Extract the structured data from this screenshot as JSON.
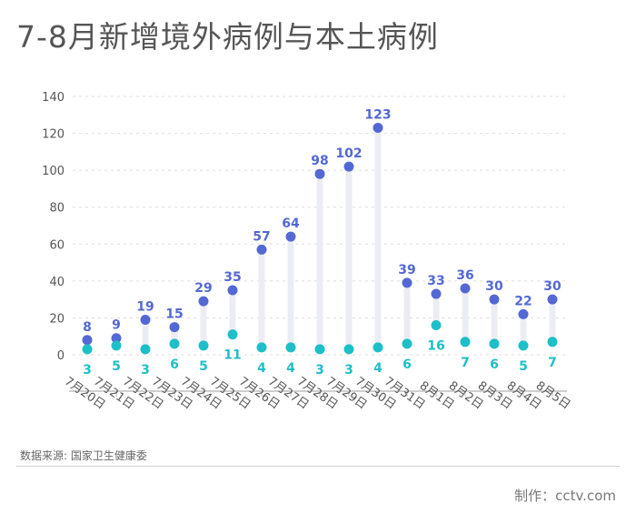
{
  "title": "7-8月新增境外病例与本土病例",
  "source": "数据来源: 国家卫生健康委",
  "credit": "制作：cctv.com",
  "colors": {
    "imported": "#5468d4",
    "local": "#1dbfc8",
    "stem": "#ecedf4",
    "axis": "#bfbfbf",
    "grid": "#dddddd",
    "text": "#555555"
  },
  "chart_data": {
    "type": "scatter",
    "categories": [
      "7月20日",
      "7月21日",
      "7月22日",
      "7月23日",
      "7月24日",
      "7月25日",
      "7月26日",
      "7月27日",
      "7月28日",
      "7月29日",
      "7月30日",
      "7月31日",
      "8月1日",
      "8月2日",
      "8月3日",
      "8月4日",
      "8月5日"
    ],
    "series": [
      {
        "values": [
          8,
          9,
          19,
          15,
          29,
          35,
          57,
          64,
          98,
          102,
          123,
          39,
          33,
          36,
          30,
          22,
          30
        ]
      },
      {
        "values": [
          3,
          5,
          3,
          6,
          5,
          11,
          4,
          4,
          3,
          3,
          4,
          6,
          16,
          7,
          6,
          5,
          7
        ]
      }
    ],
    "ylim": [
      0,
      140
    ],
    "yticks": [
      "0",
      "20",
      "40",
      "60",
      "80",
      "100",
      "120",
      "140"
    ],
    "grid": true
  }
}
